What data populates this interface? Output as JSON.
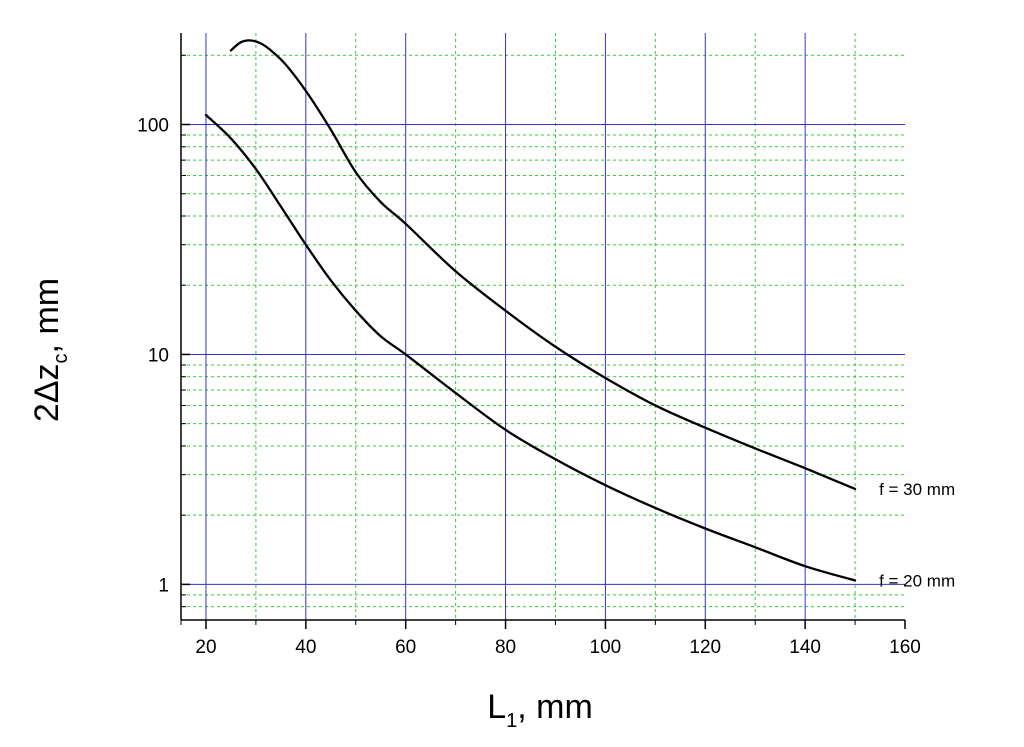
{
  "chart_data": {
    "type": "line",
    "xlabel": {
      "main": "L",
      "sub": "1",
      "rest": ", mm"
    },
    "ylabel": {
      "main": "2Δz",
      "sub": "c",
      "rest": ", mm"
    },
    "xlim": [
      15,
      160
    ],
    "ylim": [
      0.7,
      250
    ],
    "yscale": "log",
    "x_ticks": [
      20,
      40,
      60,
      80,
      100,
      120,
      140,
      160
    ],
    "y_ticks": [
      {
        "value": 1,
        "label": "1"
      },
      {
        "value": 10,
        "label": "10"
      },
      {
        "value": 100,
        "label": "100"
      }
    ],
    "grid": {
      "major": true,
      "minor": true,
      "major_color": "#3333cc",
      "minor_color": "#33cc33"
    },
    "series": [
      {
        "name": "f = 30 mm",
        "color": "#000000",
        "x": [
          25,
          27,
          29,
          31,
          33,
          36,
          40,
          45,
          50,
          55,
          60,
          70,
          80,
          90,
          100,
          110,
          120,
          130,
          140,
          150
        ],
        "y": [
          210,
          228,
          232,
          225,
          210,
          182,
          140,
          95,
          62,
          46,
          37,
          23,
          15.5,
          10.8,
          7.9,
          6,
          4.8,
          3.9,
          3.2,
          2.6
        ]
      },
      {
        "name": "f = 20 mm",
        "color": "#000000",
        "x": [
          20,
          25,
          30,
          35,
          40,
          45,
          50,
          55,
          60,
          70,
          80,
          90,
          100,
          110,
          120,
          130,
          140,
          150
        ],
        "y": [
          110,
          87,
          64,
          44,
          30,
          21,
          15.5,
          12,
          10,
          6.8,
          4.7,
          3.5,
          2.7,
          2.15,
          1.75,
          1.45,
          1.2,
          1.04
        ]
      }
    ]
  }
}
